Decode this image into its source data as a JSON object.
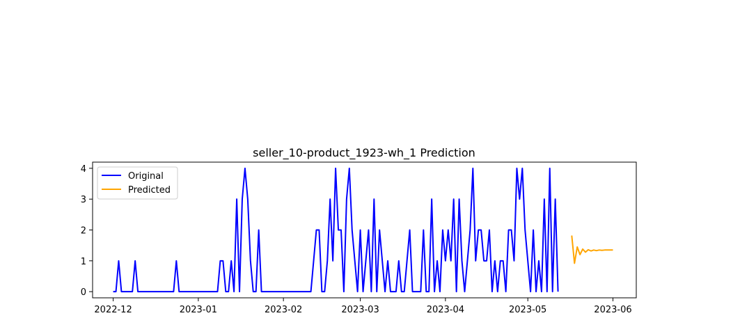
{
  "chart_data": {
    "type": "line",
    "title": "seller_10-product_1923-wh_1 Prediction",
    "xlabel": "",
    "ylabel": "",
    "x_start": "2022-12-01",
    "xlim_days": [
      -7.5,
      190.5
    ],
    "ylim": [
      -0.2,
      4.2
    ],
    "yticks": [
      0,
      1,
      2,
      3,
      4
    ],
    "xticks": [
      {
        "label": "2022-12",
        "day": 0
      },
      {
        "label": "2023-01",
        "day": 31
      },
      {
        "label": "2023-02",
        "day": 62
      },
      {
        "label": "2023-03",
        "day": 90
      },
      {
        "label": "2023-04",
        "day": 121
      },
      {
        "label": "2023-05",
        "day": 151
      },
      {
        "label": "2023-06",
        "day": 182
      }
    ],
    "legend": {
      "position": "top-left"
    },
    "series": [
      {
        "name": "Original",
        "color": "#0000ff",
        "start_day": 0,
        "values": [
          0,
          0,
          1,
          0,
          0,
          0,
          0,
          0,
          1,
          0,
          0,
          0,
          0,
          0,
          0,
          0,
          0,
          0,
          0,
          0,
          0,
          0,
          0,
          1,
          0,
          0,
          0,
          0,
          0,
          0,
          0,
          0,
          0,
          0,
          0,
          0,
          0,
          0,
          0,
          1,
          1,
          0,
          0,
          1,
          0,
          3,
          0,
          3,
          4,
          3,
          1,
          0,
          0,
          2,
          0,
          0,
          0,
          0,
          0,
          0,
          0,
          0,
          0,
          0,
          0,
          0,
          0,
          0,
          0,
          0,
          0,
          0,
          0,
          1,
          2,
          2,
          0,
          0,
          1,
          3,
          1,
          4,
          2,
          2,
          0,
          3,
          4,
          2,
          1,
          0,
          2,
          0,
          1,
          2,
          0,
          3,
          0,
          2,
          1,
          0,
          1,
          0,
          0,
          0,
          1,
          0,
          0,
          1,
          2,
          0,
          0,
          0,
          0,
          2,
          0,
          0,
          3,
          0,
          1,
          0,
          2,
          1,
          2,
          1,
          3,
          0,
          3,
          1,
          0,
          1,
          2,
          4,
          1,
          2,
          2,
          1,
          1,
          2,
          0,
          1,
          0,
          1,
          1,
          0,
          2,
          2,
          1,
          4,
          3,
          4,
          2,
          1,
          0,
          2,
          0,
          1,
          0,
          3,
          0,
          4,
          0,
          3,
          0
        ]
      },
      {
        "name": "Predicted",
        "color": "#ffa500",
        "start_day": 167,
        "values": [
          1.82,
          0.92,
          1.45,
          1.2,
          1.38,
          1.28,
          1.36,
          1.32,
          1.35,
          1.33,
          1.35,
          1.34,
          1.35,
          1.35,
          1.35,
          1.35
        ]
      }
    ]
  }
}
